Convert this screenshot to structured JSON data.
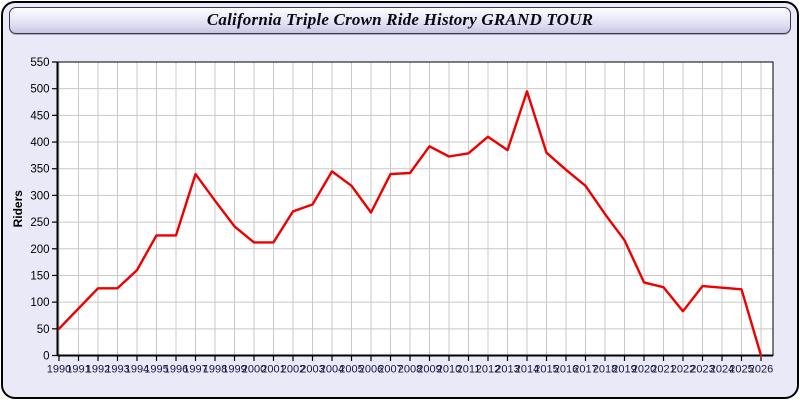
{
  "header": {
    "title": "California Triple Crown Ride History GRAND TOUR"
  },
  "colors": {
    "window_background": "#e9e9f8",
    "window_border": "#000000",
    "plot_background": "#ffffff",
    "grid": "#c8c8c8",
    "axis": "#000000",
    "x_tick_label": "#16163f",
    "y_tick_label": "#000000",
    "series_line": "#ee0000"
  },
  "chart_data": {
    "type": "line",
    "title": "California Triple Crown Ride History GRAND TOUR",
    "xlabel": "",
    "ylabel": "Riders",
    "ylim": [
      0,
      550
    ],
    "ytick_step": 50,
    "grid": true,
    "legend": false,
    "x": [
      1990,
      1991,
      1992,
      1993,
      1994,
      1995,
      1996,
      1997,
      1998,
      1999,
      2000,
      2001,
      2002,
      2003,
      2004,
      2005,
      2006,
      2007,
      2008,
      2009,
      2010,
      2011,
      2012,
      2013,
      2014,
      2015,
      2016,
      2017,
      2018,
      2019,
      2020,
      2021,
      2022,
      2023,
      2024,
      2025,
      2026
    ],
    "series": [
      {
        "name": "Riders",
        "color": "#ee0000",
        "values": [
          50,
          88,
          126,
          126,
          160,
          225,
          225,
          340,
          290,
          242,
          212,
          212,
          270,
          283,
          345,
          318,
          268,
          340,
          342,
          392,
          373,
          379,
          410,
          385,
          495,
          380,
          348,
          318,
          265,
          216,
          137,
          128,
          83,
          130,
          127,
          124,
          0
        ]
      }
    ]
  }
}
